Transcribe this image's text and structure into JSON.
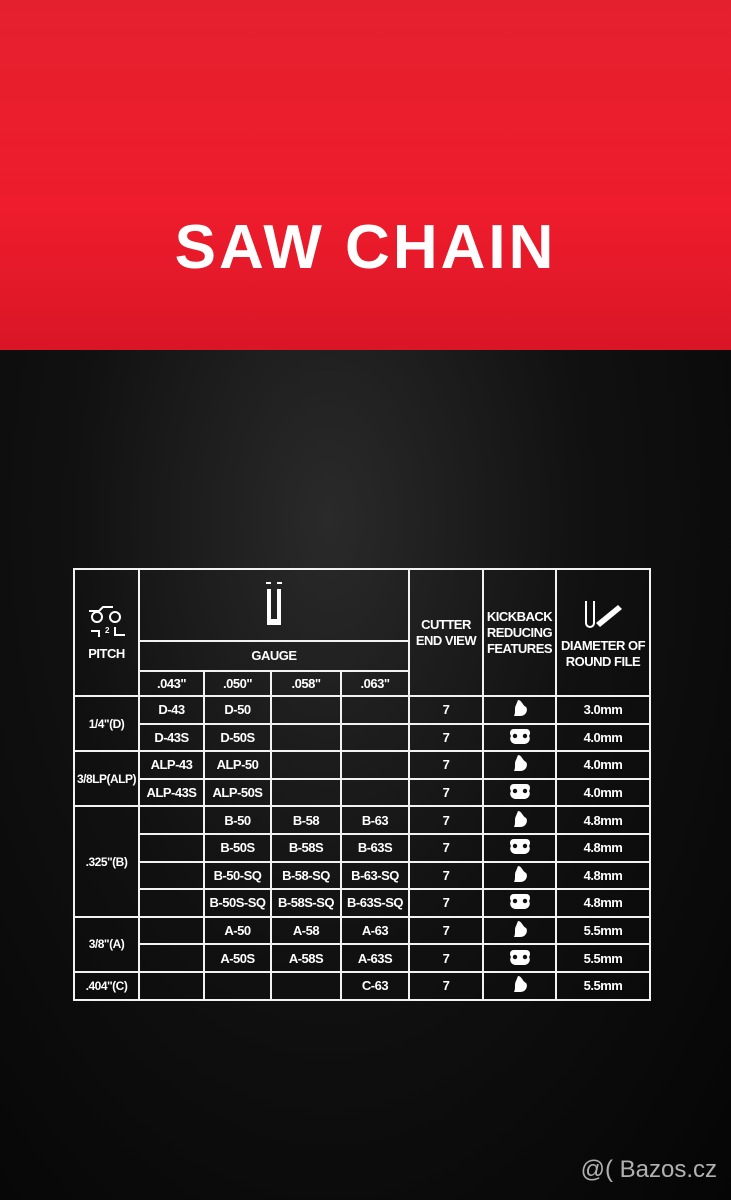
{
  "package": {
    "title": "SAW CHAIN",
    "colors": {
      "top": "#ee1c2c",
      "bottom": "#0b0b0b",
      "text": "#ffffff"
    }
  },
  "table": {
    "pitch_header": "PITCH",
    "gauge_header": "GAUGE",
    "gauges": [
      ".043\"",
      ".050\"",
      ".058\"",
      ".063\""
    ],
    "cutter_header": "CUTTER END VIEW",
    "kickback_header": "KICKBACK REDUCING FEATURES",
    "file_header": "DIAMETER OF ROUND FILE",
    "pitch_icon": "chain-pitch-icon",
    "gauge_icon": "gauge-icon",
    "file_icon": "round-file-icon",
    "pitch_groups": [
      "1/4\"(D)",
      "3/8LP(ALP)",
      ".325\"(B)",
      "3/8\"(A)",
      ".404\"(C)"
    ],
    "rows": [
      {
        "cells": [
          "D-43",
          "D-50",
          "",
          ""
        ],
        "cutter": "7",
        "kickback": "bumper",
        "file": "3.0mm"
      },
      {
        "cells": [
          "D-43S",
          "D-50S",
          "",
          ""
        ],
        "cutter": "7",
        "kickback": "guard",
        "file": "4.0mm"
      },
      {
        "cells": [
          "ALP-43",
          "ALP-50",
          "",
          ""
        ],
        "cutter": "7",
        "kickback": "bumper",
        "file": "4.0mm"
      },
      {
        "cells": [
          "ALP-43S",
          "ALP-50S",
          "",
          ""
        ],
        "cutter": "7",
        "kickback": "guard",
        "file": "4.0mm"
      },
      {
        "cells": [
          "",
          "B-50",
          "B-58",
          "B-63"
        ],
        "cutter": "7",
        "kickback": "bumper",
        "file": "4.8mm"
      },
      {
        "cells": [
          "",
          "B-50S",
          "B-58S",
          "B-63S"
        ],
        "cutter": "7",
        "kickback": "guard",
        "file": "4.8mm"
      },
      {
        "cells": [
          "",
          "B-50-SQ",
          "B-58-SQ",
          "B-63-SQ"
        ],
        "cutter": "7",
        "kickback": "bumper",
        "file": "4.8mm"
      },
      {
        "cells": [
          "",
          "B-50S-SQ",
          "B-58S-SQ",
          "B-63S-SQ"
        ],
        "cutter": "7",
        "kickback": "guard",
        "file": "4.8mm"
      },
      {
        "cells": [
          "",
          "A-50",
          "A-58",
          "A-63"
        ],
        "cutter": "7",
        "kickback": "bumper",
        "file": "5.5mm"
      },
      {
        "cells": [
          "",
          "A-50S",
          "A-58S",
          "A-63S"
        ],
        "cutter": "7",
        "kickback": "guard",
        "file": "5.5mm"
      },
      {
        "cells": [
          "",
          "",
          "",
          "C-63"
        ],
        "cutter": "7",
        "kickback": "bumper",
        "file": "5.5mm"
      }
    ]
  },
  "watermark": "@( Bazos.cz"
}
